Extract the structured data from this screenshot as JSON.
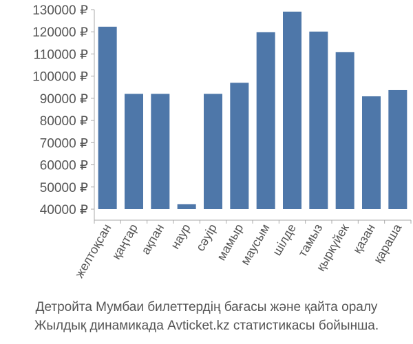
{
  "chart_data": {
    "type": "bar",
    "title": "Детройта Мумбаи билеттердің бағасы және қайта оралу",
    "subtitle": "Жылдық динамикада Avticket.kz статистикасы бойынша.",
    "categories": [
      "желтоқсан",
      "қаңтар",
      "ақпан",
      "наур",
      "сәуір",
      "мамыр",
      "маусым",
      "шілде",
      "тамыз",
      "қыркүйек",
      "қазан",
      "қараша"
    ],
    "values": [
      122300,
      92000,
      92000,
      42200,
      92000,
      97000,
      119800,
      129100,
      120100,
      110800,
      90900,
      93700
    ],
    "color": "#4e77a9",
    "ylim": [
      40000,
      130000
    ],
    "yticks": [
      {
        "value": 40000,
        "label": "40000 ₽"
      },
      {
        "value": 50000,
        "label": "50000 ₽"
      },
      {
        "value": 60000,
        "label": "60000 ₽"
      },
      {
        "value": 70000,
        "label": "70000 ₽"
      },
      {
        "value": 80000,
        "label": "80000 ₽"
      },
      {
        "value": 90000,
        "label": "90000 ₽"
      },
      {
        "value": 100000,
        "label": "100000 ₽"
      },
      {
        "value": 110000,
        "label": "110000 ₽"
      },
      {
        "value": 120000,
        "label": "120000 ₽"
      },
      {
        "value": 130000,
        "label": "130000 ₽"
      }
    ],
    "grid": false
  }
}
